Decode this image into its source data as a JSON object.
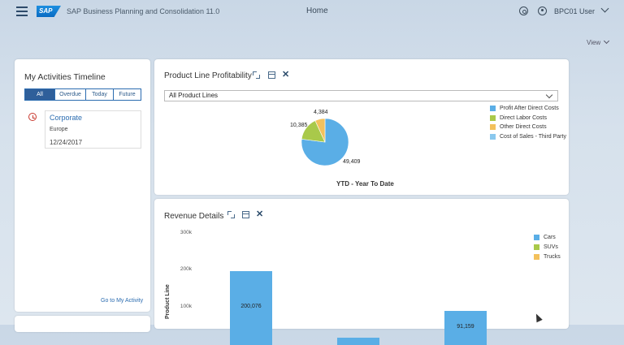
{
  "shell": {
    "logo": "SAP",
    "app_title": "SAP Business Planning and Consolidation 11.0",
    "page_title": "Home",
    "user": "BPC01 User",
    "view_label": "View"
  },
  "activities": {
    "title": "My Activities Timeline",
    "tabs": [
      "All",
      "Overdue",
      "Today",
      "Future"
    ],
    "selected_tab": "All",
    "items": [
      {
        "title": "Corporate",
        "subtitle": "Europe",
        "date": "12/24/2017"
      }
    ],
    "footer_link": "Go to My Activity"
  },
  "profitability": {
    "title": "Product Line Profitability",
    "filter": "All Product Lines",
    "caption": "YTD - Year To Date",
    "chart_data": {
      "type": "pie",
      "categories": [
        "Profit After Direct Costs",
        "Direct Labor Costs",
        "Other Direct Costs",
        "Cost of Sales - Third Party"
      ],
      "values": [
        49409,
        10385,
        4384,
        0
      ],
      "labels": [
        "49,409",
        "10,385",
        "4,384"
      ],
      "colors": [
        "#5aaee6",
        "#a9c94a",
        "#f3c15c",
        "#8ac8ee"
      ],
      "legend": "right"
    }
  },
  "revenue": {
    "title": "Revenue Details",
    "chart_data": {
      "type": "bar",
      "ylabel": "Product Line",
      "yticks": [
        "300k",
        "200k",
        "100k"
      ],
      "ylim": [
        0,
        300000
      ],
      "series_legend": [
        {
          "name": "Cars",
          "color": "#5aaee6"
        },
        {
          "name": "SUVs",
          "color": "#a9c94a"
        },
        {
          "name": "Trucks",
          "color": "#f3c15c"
        }
      ],
      "values": [
        200076,
        20000,
        91159
      ],
      "value_labels": [
        "200,076",
        "",
        "91,159"
      ],
      "legend": "right"
    }
  }
}
